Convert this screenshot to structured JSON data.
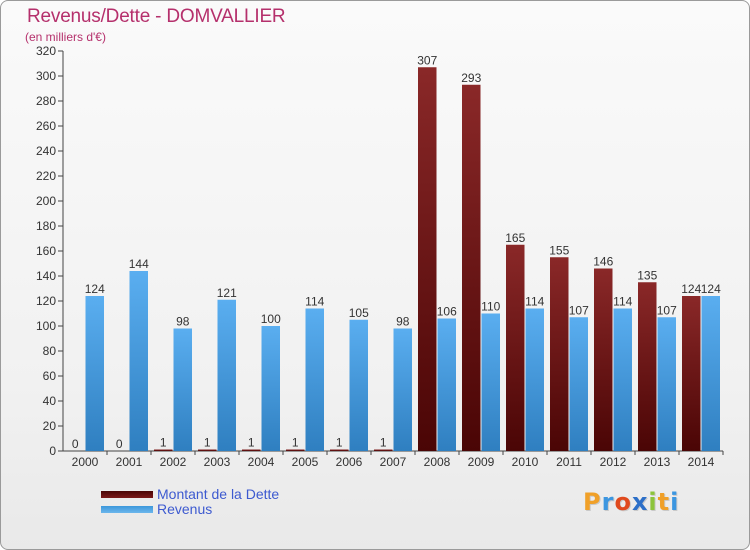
{
  "header": {
    "title": "Revenus/Dette - DOMVALLIER",
    "subtitle": "(en milliers d'€)"
  },
  "logo": {
    "letters": [
      "P",
      "r",
      "o",
      "x",
      "i",
      "t",
      "i"
    ],
    "colors": [
      "#f0a028",
      "#3c96e0",
      "#e04a1e",
      "#2c6fc8",
      "#8cc43c",
      "#f0a028",
      "#3c96e0"
    ]
  },
  "colors": {
    "dette": "#7a1818",
    "revenus": "#3c97db",
    "title": "#b5306c",
    "legend_text": "#3d5ad0"
  },
  "chart_data": {
    "type": "bar",
    "title": "Revenus/Dette - DOMVALLIER",
    "subtitle": "(en milliers d'€)",
    "categories": [
      "2000",
      "2001",
      "2002",
      "2003",
      "2004",
      "2005",
      "2006",
      "2007",
      "2008",
      "2009",
      "2010",
      "2011",
      "2012",
      "2013",
      "2014"
    ],
    "series": [
      {
        "name": "Montant de la Dette",
        "color": "#7a1818",
        "values": [
          0,
          0,
          1,
          1,
          1,
          1,
          1,
          1,
          307,
          293,
          165,
          155,
          146,
          135,
          124
        ]
      },
      {
        "name": "Revenus",
        "color": "#3c97db",
        "values": [
          124,
          144,
          98,
          121,
          100,
          114,
          105,
          98,
          106,
          110,
          114,
          107,
          114,
          107,
          124
        ]
      }
    ],
    "ylim": [
      0,
      320
    ],
    "yticks": [
      0,
      20,
      40,
      60,
      80,
      100,
      120,
      140,
      160,
      180,
      200,
      220,
      240,
      260,
      280,
      300,
      320
    ],
    "grid": false,
    "legend": "bottom-left"
  }
}
